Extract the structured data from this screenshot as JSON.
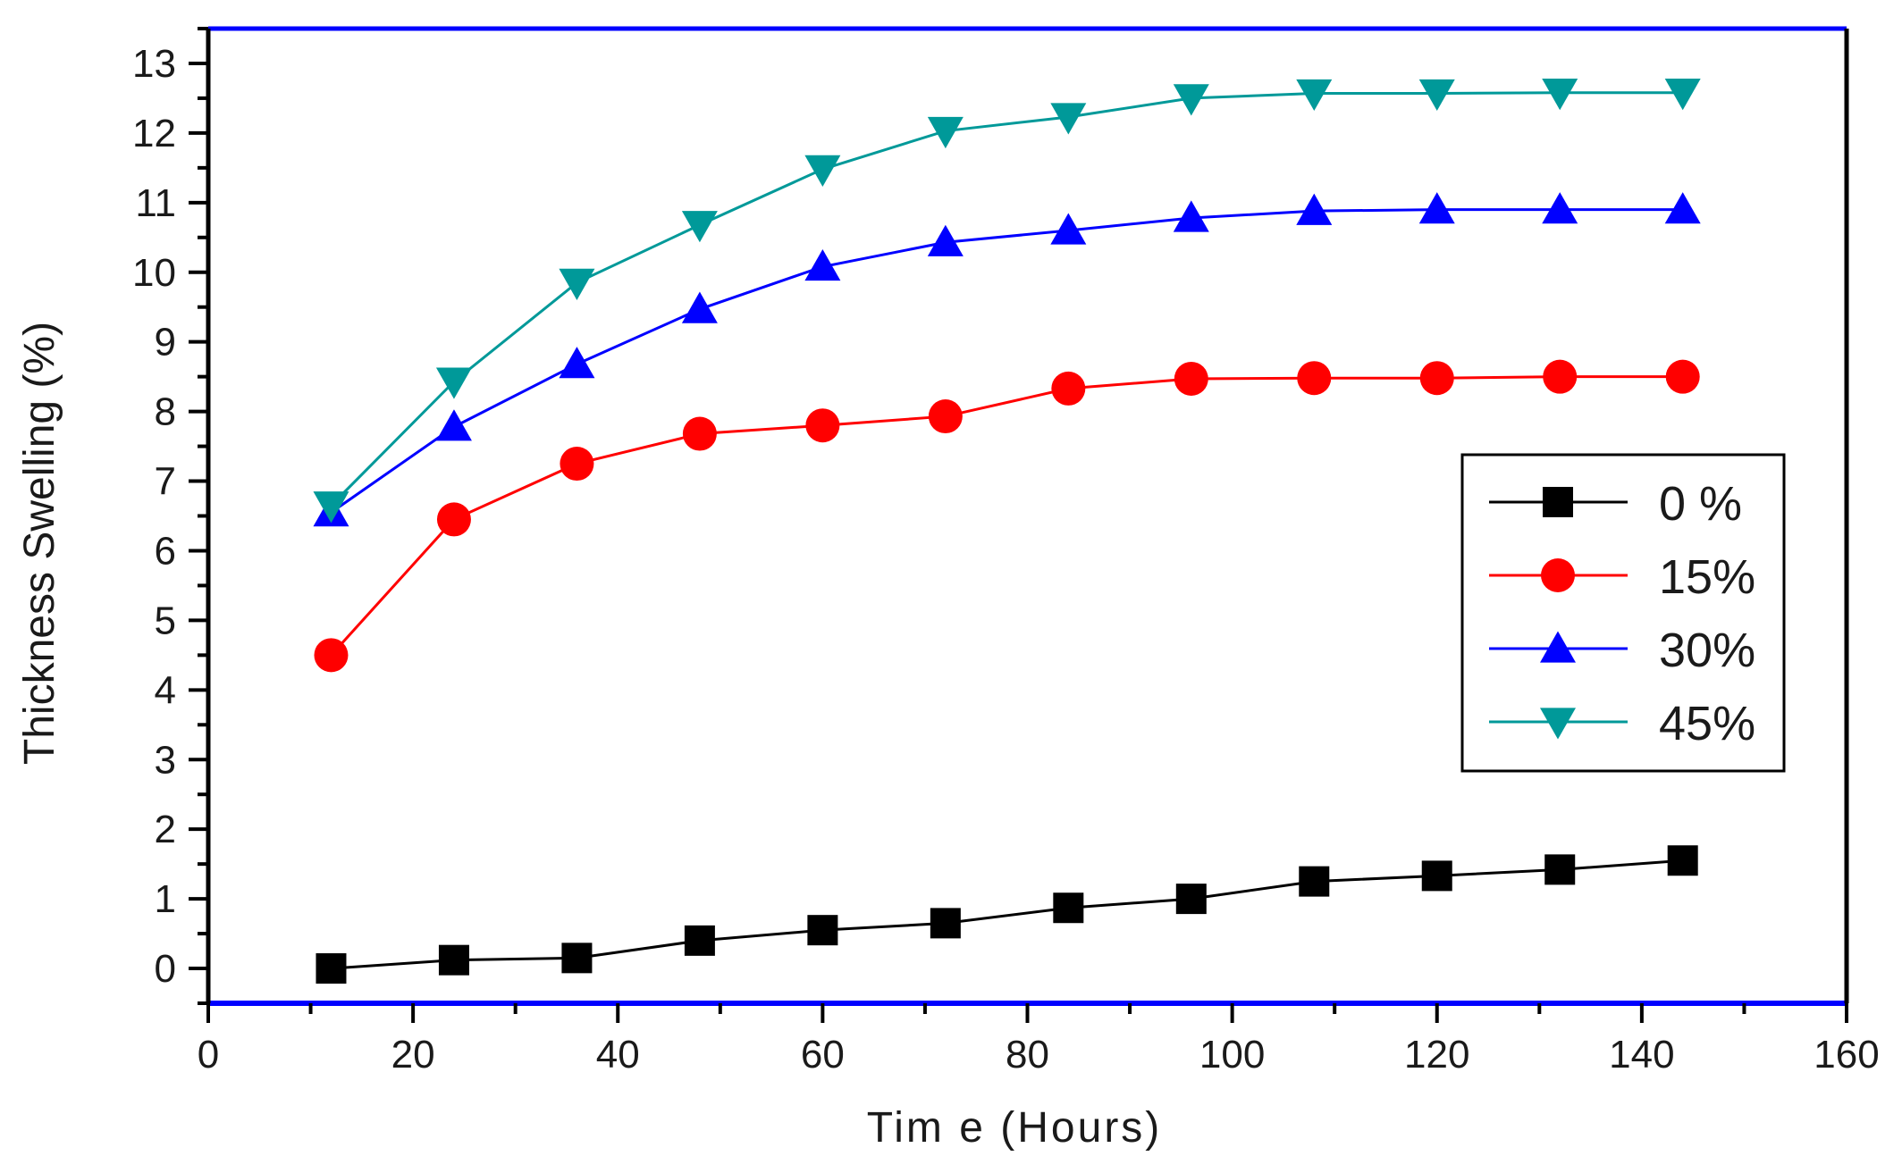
{
  "chart_data": {
    "type": "line",
    "title": "",
    "xlabel": "Tim e (Hours)",
    "ylabel": "Thickness Swelling (%)",
    "xlim": [
      0,
      160
    ],
    "ylim": [
      -0.5,
      13.5
    ],
    "x_ticks": [
      "0",
      "20",
      "40",
      "60",
      "80",
      "100",
      "120",
      "140",
      "160"
    ],
    "y_ticks": [
      "0",
      "1",
      "2",
      "3",
      "4",
      "5",
      "6",
      "7",
      "8",
      "9",
      "10",
      "11",
      "12",
      "13"
    ],
    "grid": false,
    "legend_position": "right",
    "x": [
      12,
      24,
      36,
      48,
      60,
      72,
      84,
      96,
      108,
      120,
      132,
      144
    ],
    "series": [
      {
        "name": "0 %",
        "color": "#000000",
        "marker": "square",
        "values": [
          0.0,
          0.12,
          0.15,
          0.4,
          0.55,
          0.65,
          0.87,
          1.0,
          1.25,
          1.33,
          1.42,
          1.55
        ]
      },
      {
        "name": "15%",
        "color": "#ff0000",
        "marker": "circle",
        "values": [
          4.5,
          6.45,
          7.25,
          7.68,
          7.8,
          7.93,
          8.33,
          8.47,
          8.48,
          8.48,
          8.5,
          8.5
        ]
      },
      {
        "name": "30%",
        "color": "#0000ff",
        "marker": "triangle-up",
        "values": [
          6.55,
          7.78,
          8.68,
          9.47,
          10.08,
          10.43,
          10.6,
          10.78,
          10.88,
          10.9,
          10.9,
          10.9
        ]
      },
      {
        "name": "45%",
        "color": "#009999",
        "marker": "triangle-down",
        "values": [
          6.65,
          8.43,
          9.85,
          10.68,
          11.48,
          12.03,
          12.23,
          12.5,
          12.57,
          12.57,
          12.58,
          12.58
        ]
      }
    ],
    "frame_colors": {
      "top_bottom": "#0000ff",
      "left_right": "#000000"
    }
  }
}
